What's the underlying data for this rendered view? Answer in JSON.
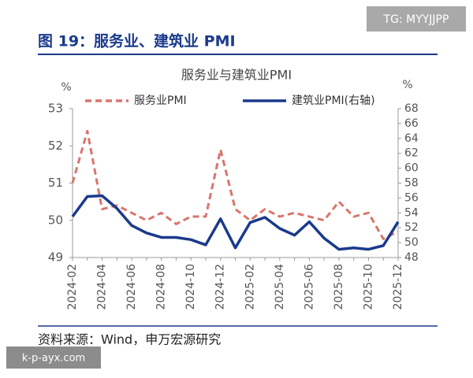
{
  "header": {
    "title": "图 19：服务业、建筑业 PMI",
    "watermark": "TG: MYYJJPP"
  },
  "chart_data": {
    "type": "line",
    "title": "服务业与建筑业PMI",
    "y_label": "%",
    "y2_label": "%",
    "categories": [
      "2024-02",
      null,
      "2024-04",
      null,
      "2024-06",
      null,
      "2024-08",
      null,
      "2024-10",
      null,
      "2024-12",
      null,
      "2025-02",
      null,
      "2025-04",
      null,
      "2025-06",
      null,
      "2025-08",
      null,
      "2025-10",
      null,
      "2025-12"
    ],
    "series": [
      {
        "name": "服务业PMI",
        "color": "#d9756d",
        "line_style": "dashed",
        "axis": "y",
        "values": [
          51.0,
          52.4,
          50.3,
          50.4,
          50.2,
          50.0,
          50.2,
          49.9,
          50.1,
          50.1,
          51.9,
          50.3,
          50.0,
          50.3,
          50.1,
          50.2,
          50.1,
          50.0,
          50.5,
          50.1,
          50.2,
          49.5,
          49.7
        ]
      },
      {
        "name": "建筑业PMI(右轴)",
        "color": "#1b3a8c",
        "line_style": "solid",
        "axis": "y2",
        "values": [
          53.5,
          56.2,
          56.3,
          54.6,
          52.3,
          51.3,
          50.7,
          50.7,
          50.4,
          49.7,
          53.2,
          49.3,
          52.7,
          53.4,
          51.9,
          51.0,
          52.8,
          50.6,
          49.1,
          49.3,
          49.1,
          49.6,
          52.8
        ]
      }
    ],
    "ylim": [
      49,
      53
    ],
    "yticks": [
      49,
      50,
      51,
      52,
      53
    ],
    "y2lim": [
      48,
      68
    ],
    "y2ticks": [
      48,
      50,
      52,
      54,
      56,
      58,
      60,
      62,
      64,
      66,
      68
    ],
    "legend": "top"
  },
  "footer": {
    "source": "资料来源：Wind，申万宏源研究",
    "watermark": "k-p-ayx.com"
  }
}
